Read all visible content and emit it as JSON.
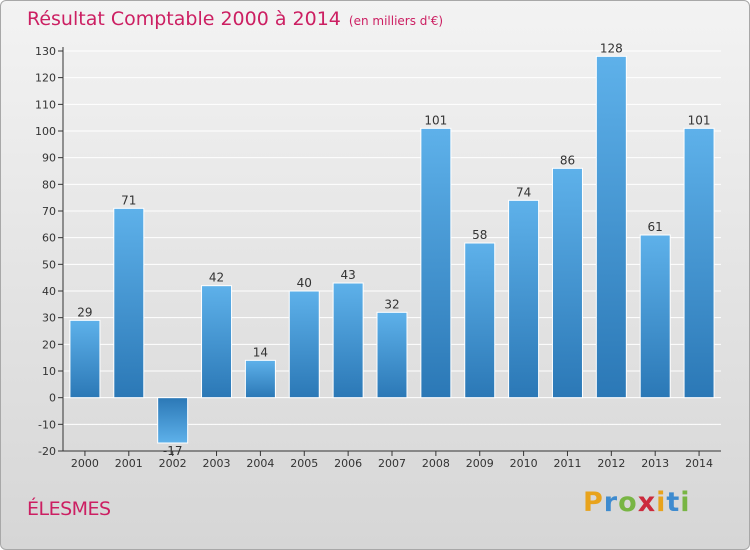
{
  "header": {
    "title": "Résultat Comptable 2000 à 2014",
    "subtitle": "(en milliers d'€)"
  },
  "footer": {
    "commune": "ÉLESMES",
    "logo": {
      "letters": [
        "P",
        "r",
        "o",
        "x",
        "i",
        "t",
        "i"
      ],
      "colors": [
        "#e8a31c",
        "#3e8bcf",
        "#78b544",
        "#cc2a3c",
        "#e8a31c",
        "#3e8bcf",
        "#78b544"
      ]
    }
  },
  "colors": {
    "title": "#cc1f62",
    "bar_light": "#5eb1ea",
    "bar_dark": "#2b78b6",
    "grid": "#ffffff",
    "axis": "#333333"
  },
  "chart_data": {
    "type": "bar",
    "categories": [
      "2000",
      "2001",
      "2002",
      "2003",
      "2004",
      "2005",
      "2006",
      "2007",
      "2008",
      "2009",
      "2010",
      "2011",
      "2012",
      "2013",
      "2014"
    ],
    "values": [
      29,
      71,
      -17,
      42,
      14,
      40,
      43,
      32,
      101,
      58,
      74,
      86,
      128,
      61,
      101
    ],
    "data_labels": [
      "29",
      "71",
      "-17",
      "42",
      "14",
      "40",
      "43",
      "32",
      "101",
      "58",
      "74",
      "86",
      "128",
      "61",
      "101"
    ],
    "title": "Résultat Comptable 2000 à 2014",
    "subtitle": "(en milliers d'€)",
    "xlabel": "",
    "ylabel": "",
    "ylim": [
      -20,
      130
    ],
    "yticks": [
      -20,
      -10,
      0,
      10,
      20,
      30,
      40,
      50,
      60,
      70,
      80,
      90,
      100,
      110,
      120,
      130
    ],
    "grid": true
  }
}
